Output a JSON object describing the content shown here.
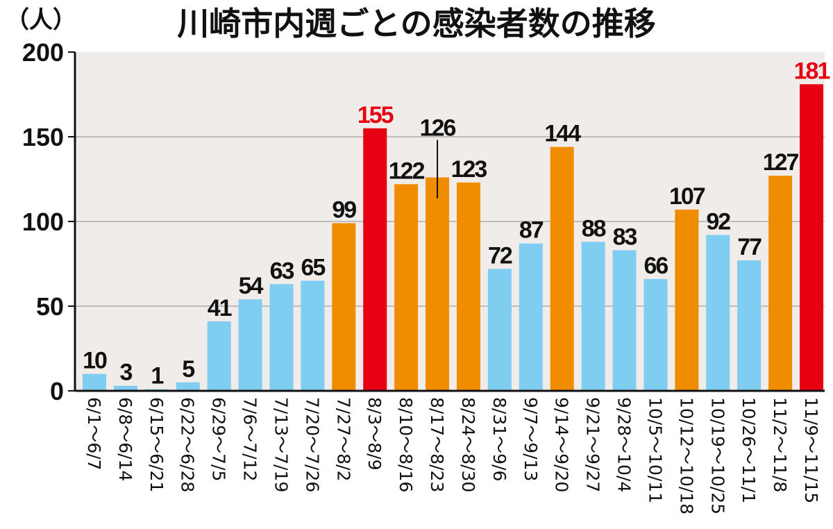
{
  "chart_data": {
    "type": "bar",
    "title": "川崎市内週ごとの感染者数の推移",
    "ylabel": "（人）",
    "xlabel": "",
    "ylim": [
      0,
      200
    ],
    "yticks": [
      0,
      50,
      100,
      150,
      200
    ],
    "grid": true,
    "categories": [
      "6/1～6/7",
      "6/8～6/14",
      "6/15～6/21",
      "6/22～6/28",
      "6/29～7/5",
      "7/6～7/12",
      "7/13～7/19",
      "7/20～7/26",
      "7/27～8/2",
      "8/3～8/9",
      "8/10～8/16",
      "8/17～8/23",
      "8/24～8/30",
      "8/31～9/6",
      "9/7～9/13",
      "9/14～9/20",
      "9/21～9/27",
      "9/28～10/4",
      "10/5～10/11",
      "10/12～10/18",
      "10/19～10/25",
      "10/26～11/1",
      "11/2～11/8",
      "11/9～11/15"
    ],
    "values": [
      10,
      3,
      1,
      5,
      41,
      54,
      63,
      65,
      99,
      155,
      122,
      126,
      123,
      72,
      87,
      144,
      88,
      83,
      66,
      107,
      92,
      77,
      127,
      181
    ],
    "bar_levels": [
      "low",
      "low",
      "low",
      "low",
      "low",
      "low",
      "low",
      "low",
      "mid",
      "high",
      "mid",
      "mid",
      "mid",
      "low",
      "low",
      "mid",
      "low",
      "low",
      "low",
      "mid",
      "low",
      "low",
      "mid",
      "high"
    ],
    "colors": {
      "low": "#7fcdf0",
      "mid": "#f08c00",
      "high": "#e60012",
      "plot_bg": "#efecea",
      "grid": "#bdbdbd",
      "label_high": "#e60012",
      "label": "#111111"
    }
  }
}
